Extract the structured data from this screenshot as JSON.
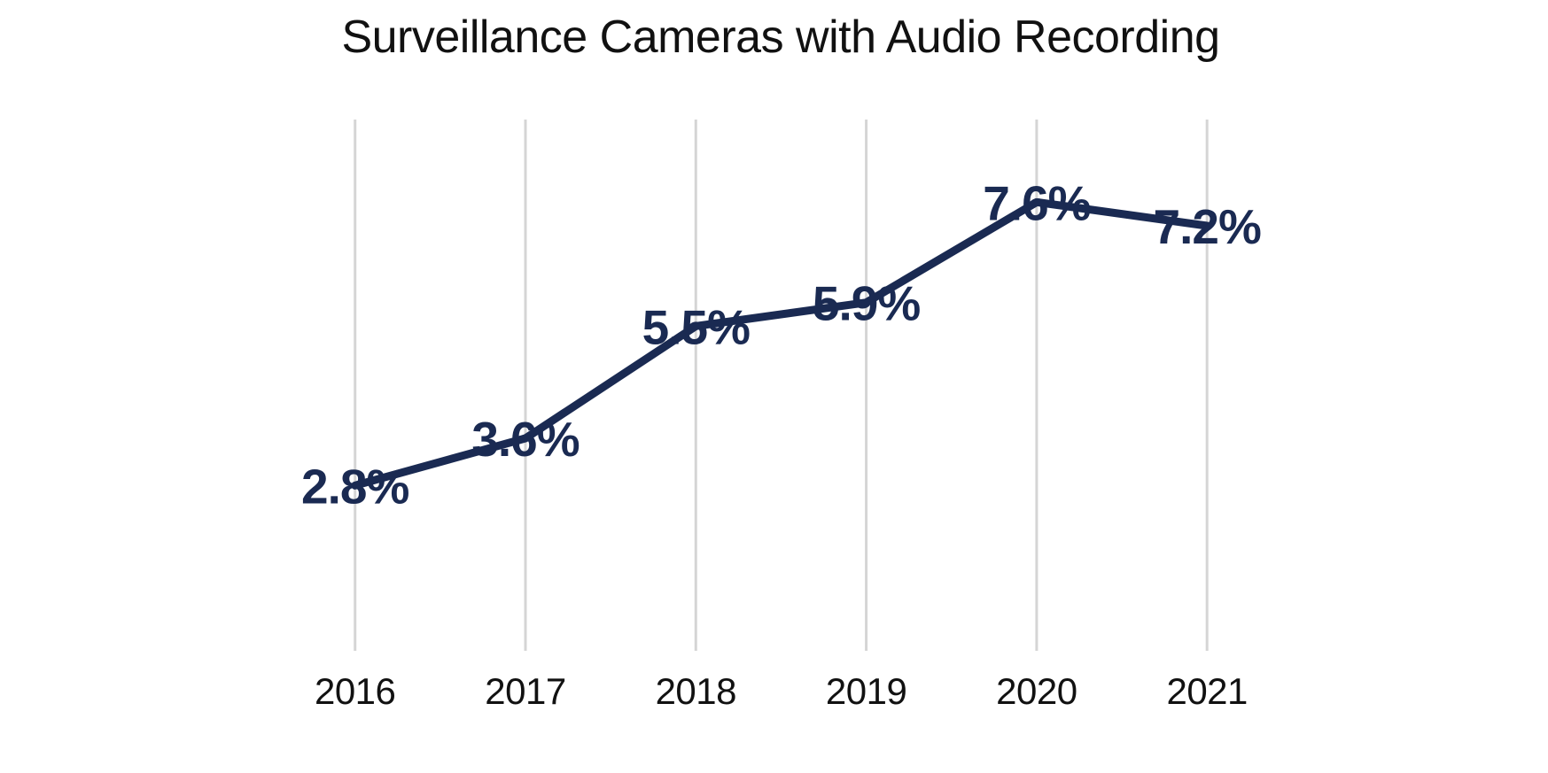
{
  "chart_data": {
    "type": "line",
    "title": "Surveillance Cameras with Audio Recording",
    "categories": [
      "2016",
      "2017",
      "2018",
      "2019",
      "2020",
      "2021"
    ],
    "values": [
      2.8,
      3.6,
      5.5,
      5.9,
      7.6,
      7.2
    ],
    "data_labels": [
      "2.8%",
      "3.6%",
      "5.5%",
      "5.9%",
      "7.6%",
      "7.2%"
    ],
    "xlabel": "",
    "ylabel": "",
    "ylim": [
      0,
      9
    ],
    "grid": "vertical-only",
    "legend": "none",
    "colors": {
      "line": "#1a2a52",
      "data_label": "#1a2a52",
      "gridline": "#d5d5d5",
      "axis_label": "#111111",
      "title": "#111111",
      "background": "#ffffff"
    }
  }
}
